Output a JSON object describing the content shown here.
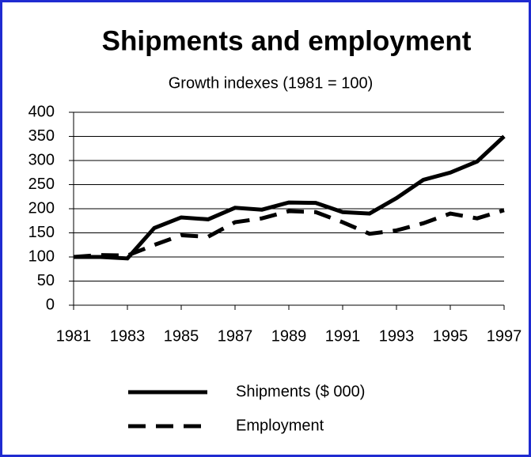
{
  "chart_data": {
    "type": "line",
    "title": "Shipments and employment",
    "subtitle": "Growth indexes (1981 = 100)",
    "x": [
      1981,
      1982,
      1983,
      1984,
      1985,
      1986,
      1987,
      1988,
      1989,
      1990,
      1991,
      1992,
      1993,
      1994,
      1995,
      1996,
      1997
    ],
    "series": [
      {
        "name": "Shipments ($ 000)",
        "color": "#000000",
        "dash": "solid",
        "values": [
          100,
          100,
          97,
          160,
          182,
          178,
          202,
          198,
          213,
          212,
          193,
          190,
          222,
          260,
          275,
          298,
          350
        ]
      },
      {
        "name": "Employment",
        "color": "#000000",
        "dash": "dashed",
        "values": [
          100,
          104,
          103,
          125,
          145,
          142,
          172,
          180,
          195,
          193,
          172,
          148,
          155,
          170,
          190,
          180,
          197
        ]
      }
    ],
    "xlim": [
      1981,
      1997
    ],
    "xticks": [
      1981,
      1983,
      1985,
      1987,
      1989,
      1991,
      1993,
      1995,
      1997
    ],
    "ylim": [
      0,
      400
    ],
    "yticks": [
      0,
      50,
      100,
      150,
      200,
      250,
      300,
      350,
      400
    ],
    "grid": true
  }
}
